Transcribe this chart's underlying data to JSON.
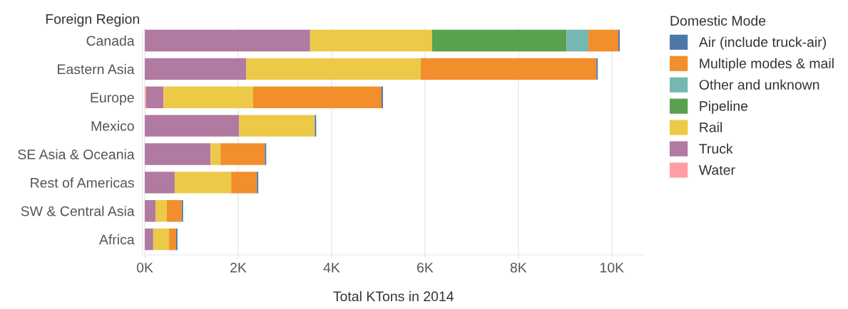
{
  "chart_data": {
    "type": "bar",
    "orientation": "horizontal",
    "stacked": true,
    "xlabel": "Total KTons in 2014",
    "ylabel": "Foreign Region",
    "legend_title": "Domestic Mode",
    "categories": [
      "Canada",
      "Eastern Asia",
      "Europe",
      "Mexico",
      "SE Asia & Oceania",
      "Rest of Americas",
      "SW & Central Asia",
      "Africa"
    ],
    "series": [
      {
        "name": "Water",
        "color": "#ff9da7",
        "values": [
          null,
          null,
          30,
          null,
          null,
          null,
          null,
          null
        ]
      },
      {
        "name": "Truck",
        "color": "#b07aa1",
        "values": [
          3540,
          2170,
          370,
          2020,
          1410,
          640,
          230,
          180
        ]
      },
      {
        "name": "Rail",
        "color": "#edc948",
        "values": [
          2610,
          3740,
          1920,
          1620,
          210,
          1210,
          240,
          340
        ]
      },
      {
        "name": "Pipeline",
        "color": "#59a14f",
        "values": [
          2880,
          null,
          null,
          null,
          null,
          null,
          null,
          null
        ]
      },
      {
        "name": "Other and unknown",
        "color": "#76b7b2",
        "values": [
          470,
          null,
          null,
          null,
          null,
          null,
          null,
          null
        ]
      },
      {
        "name": "Multiple modes & mail",
        "color": "#f28e2b",
        "values": [
          640,
          3760,
          2750,
          null,
          950,
          550,
          320,
          150
        ]
      },
      {
        "name": "Air (include truck-air)",
        "color": "#4e79a7",
        "values": [
          30,
          30,
          30,
          30,
          30,
          30,
          30,
          30
        ]
      }
    ],
    "xlim": [
      -50,
      10700
    ],
    "xticks": [
      {
        "value": 0,
        "label": "0K"
      },
      {
        "value": 2000,
        "label": "2K"
      },
      {
        "value": 4000,
        "label": "4K"
      },
      {
        "value": 6000,
        "label": "6K"
      },
      {
        "value": 8000,
        "label": "8K"
      },
      {
        "value": 10000,
        "label": "10K"
      }
    ],
    "grid": "x",
    "legend": "top right"
  }
}
